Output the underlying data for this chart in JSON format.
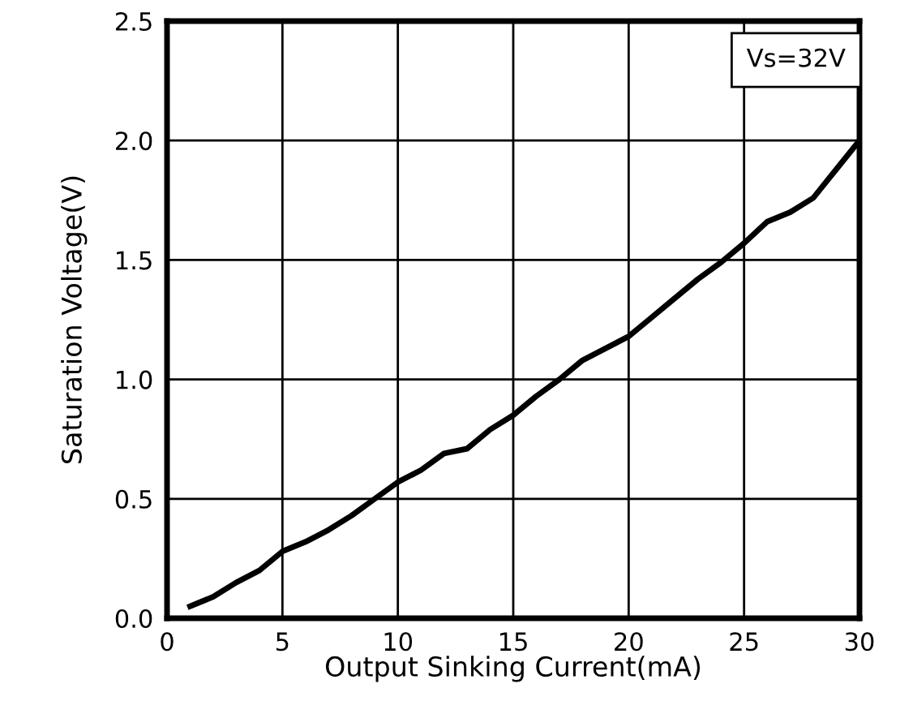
{
  "chart_data": {
    "type": "line",
    "xlabel": "Output Sinking Current(mA)",
    "ylabel": "Saturation Voltage(V)",
    "annotations": [
      "Vs=32V"
    ],
    "x": [
      1,
      2,
      3,
      4,
      5,
      6,
      7,
      8,
      9,
      10,
      11,
      12,
      13,
      14,
      15,
      16,
      17,
      18,
      19,
      20,
      21,
      22,
      23,
      24,
      25,
      26,
      27,
      28,
      29,
      30
    ],
    "series": [
      {
        "color": "#000000",
        "values": [
          0.05,
          0.09,
          0.15,
          0.2,
          0.28,
          0.32,
          0.37,
          0.43,
          0.5,
          0.57,
          0.62,
          0.69,
          0.71,
          0.79,
          0.85,
          0.93,
          1.0,
          1.08,
          1.13,
          1.18,
          1.26,
          1.34,
          1.42,
          1.49,
          1.57,
          1.66,
          1.7,
          1.76,
          1.88,
          2.0
        ]
      }
    ],
    "xlim": [
      0,
      30
    ],
    "xticks": [
      0,
      5,
      10,
      15,
      20,
      25,
      30
    ],
    "ylim": [
      0,
      2.5
    ],
    "yticks": [
      {
        "value": 0,
        "label": "0.0"
      },
      {
        "value": 0.5,
        "label": "0.5"
      },
      {
        "value": 1,
        "label": "1.0"
      },
      {
        "value": 1.5,
        "label": "1.5"
      },
      {
        "value": 2,
        "label": "2.0"
      },
      {
        "value": 2.5,
        "label": "2.5"
      }
    ],
    "grid": true,
    "legend": false
  }
}
